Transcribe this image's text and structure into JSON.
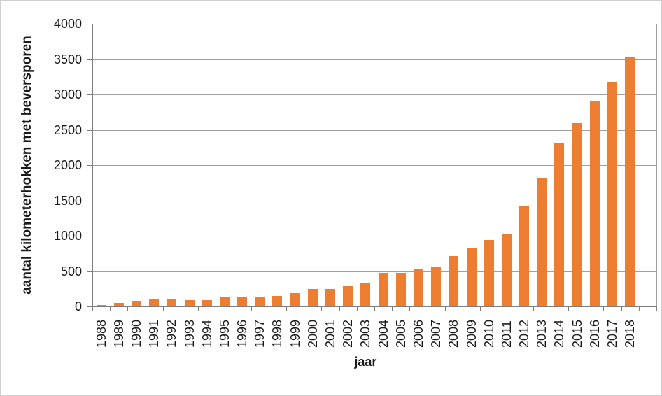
{
  "chart_data": {
    "type": "bar",
    "title": "",
    "xlabel": "jaar",
    "ylabel": "aantal kilometerhokken met beversporen",
    "categories": [
      "1988",
      "1989",
      "1990",
      "1991",
      "1992",
      "1993",
      "1994",
      "1995",
      "1996",
      "1997",
      "1998",
      "1999",
      "2000",
      "2001",
      "2002",
      "2003",
      "2004",
      "2005",
      "2006",
      "2007",
      "2008",
      "2009",
      "2010",
      "2011",
      "2012",
      "2013",
      "2014",
      "2015",
      "2016",
      "2017",
      "2018"
    ],
    "values": [
      15,
      45,
      75,
      95,
      95,
      90,
      85,
      140,
      140,
      135,
      150,
      185,
      250,
      250,
      285,
      330,
      480,
      480,
      520,
      555,
      715,
      825,
      940,
      1030,
      1420,
      1810,
      2320,
      2590,
      2900,
      3180,
      3520
    ],
    "ylim": [
      0,
      4000
    ],
    "ytick_step": 500,
    "ytick_labels": [
      "0",
      "500",
      "1000",
      "1500",
      "2000",
      "2500",
      "3000",
      "3500",
      "4000"
    ],
    "grid": "horizontal",
    "legend": "none",
    "colors": {
      "bar": "#ED7D31",
      "gridline": "#A0A0A0",
      "axis": "#7F7F7F",
      "text": "#1A1A1A",
      "chart_border": "#CFCFCF",
      "background": "#FFFFFF"
    }
  }
}
